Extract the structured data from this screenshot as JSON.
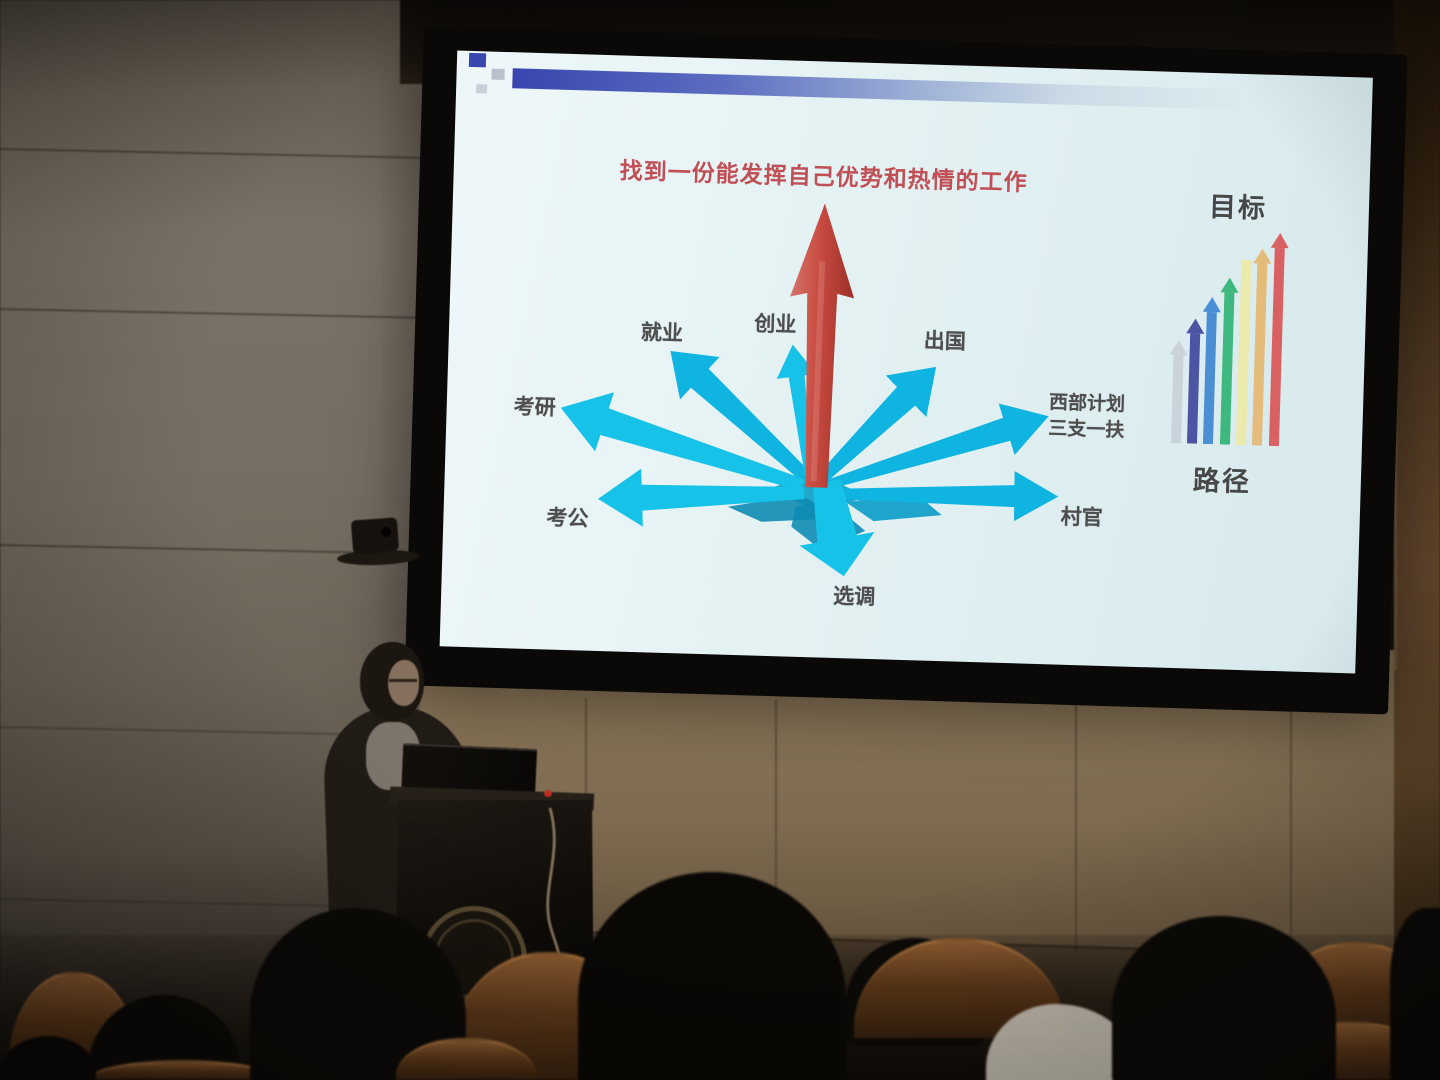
{
  "slide": {
    "title": "找到一份能发挥自己优势和热情的工作",
    "spokes": {
      "jiuye": "就业",
      "chuangye": "创业",
      "chuguo": "出国",
      "kaoyan": "考研",
      "kaogong": "考公",
      "xuandiao": "选调",
      "cunguan": "村官",
      "xibu_line1": "西部计划",
      "xibu_line2": "三支一扶"
    },
    "panel": {
      "goal": "目标",
      "path": "路径"
    },
    "diagram": {
      "type": "radial-arrows",
      "spokes": [
        "就业",
        "创业",
        "出国",
        "考研",
        "考公",
        "选调",
        "村官",
        "西部计划三支一扶"
      ],
      "center_arrow": "red-up-arrow",
      "mini_chart": "seven ascending arrows from grey to red between 目标 and 路径"
    },
    "colors": {
      "slide_bg_light": "#eef7f8",
      "slide_bg": "#e3f1f3",
      "slide_bg_dark": "#d7e9ed",
      "cyan": "#10b4e0",
      "cyan_bright": "#17c2e8",
      "cyan_dark": "#0a9cc6",
      "cyan_deep": "#0d8cb4",
      "red_light": "#d4736a",
      "red_mid": "#c84b40",
      "red_dark": "#9c3028",
      "title_red": "#c14f56",
      "label_gray": "#4e4e4e",
      "deco_blue": "#3946ae",
      "mini": [
        "#c6cdd6",
        "#4b55a4",
        "#4a8fd4",
        "#3eb87e",
        "#efe9a0",
        "#e5b76e",
        "#d96161"
      ]
    }
  }
}
